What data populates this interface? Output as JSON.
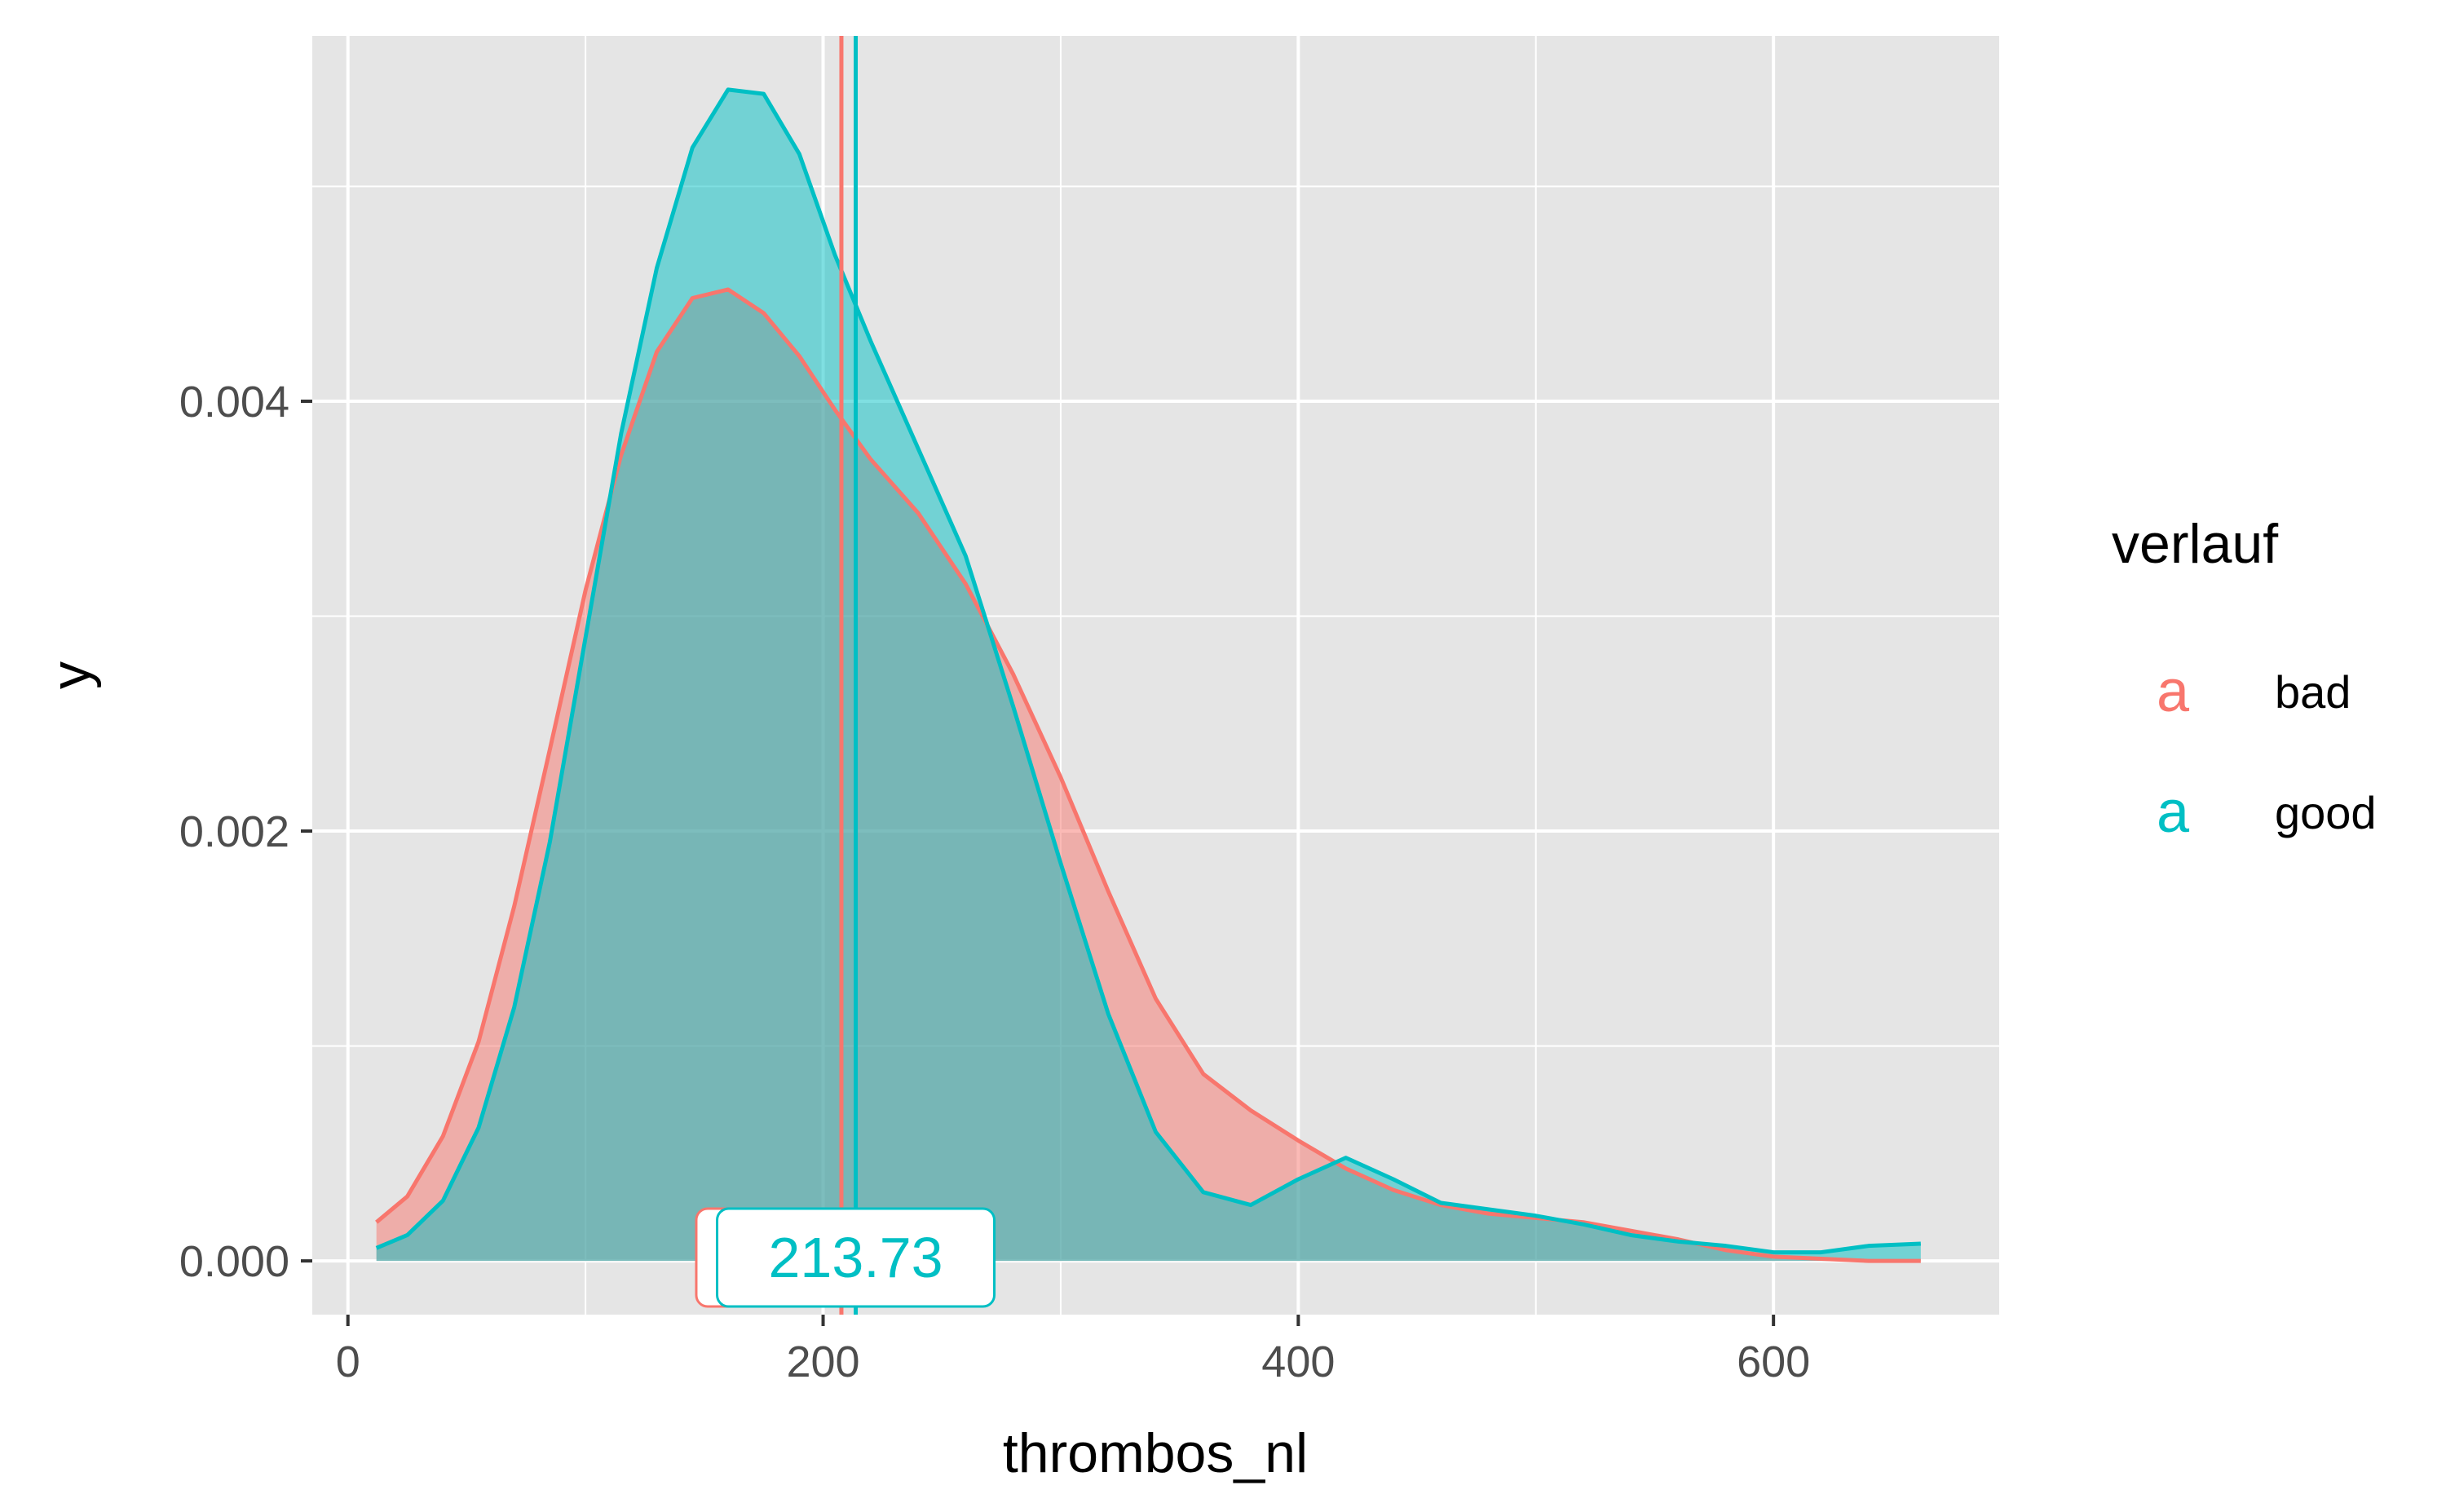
{
  "chart_data": {
    "type": "area",
    "subtype": "density",
    "xlabel": "thrombos_nl",
    "ylabel": "y",
    "xlim": [
      -15,
      695
    ],
    "ylim": [
      -0.00025,
      0.0057
    ],
    "x_ticks": [
      0,
      200,
      400,
      600
    ],
    "x_tick_labels": [
      "0",
      "200",
      "400",
      "600"
    ],
    "y_ticks": [
      0,
      0.002,
      0.004
    ],
    "y_tick_labels": [
      "0.000",
      "0.002",
      "0.004"
    ],
    "grid": true,
    "legend": {
      "title": "verlauf",
      "position": "right",
      "key_glyph": "a",
      "entries": [
        "bad",
        "good"
      ]
    },
    "series": [
      {
        "name": "bad",
        "color": "#F8766D",
        "fill": "#F8766D",
        "x": [
          12,
          25,
          40,
          55,
          70,
          85,
          100,
          115,
          130,
          145,
          160,
          175,
          190,
          205,
          220,
          240,
          260,
          280,
          300,
          320,
          340,
          360,
          380,
          400,
          420,
          440,
          460,
          480,
          500,
          520,
          540,
          560,
          580,
          600,
          620,
          640,
          662
        ],
        "y": [
          0.00018,
          0.0003,
          0.00058,
          0.00102,
          0.00165,
          0.00238,
          0.00312,
          0.00375,
          0.00423,
          0.00448,
          0.00452,
          0.00441,
          0.00421,
          0.00396,
          0.00373,
          0.00348,
          0.00315,
          0.00273,
          0.00225,
          0.00172,
          0.00122,
          0.00087,
          0.0007,
          0.00056,
          0.00043,
          0.00033,
          0.00026,
          0.00022,
          0.0002,
          0.00018,
          0.00014,
          0.0001,
          5e-05,
          2e-05,
          1e-05,
          0.0,
          0.0
        ],
        "mean": 207.7,
        "mean_label": ""
      },
      {
        "name": "good",
        "color": "#00BFC4",
        "fill": "#00BFC4",
        "x": [
          12,
          25,
          40,
          55,
          70,
          85,
          100,
          115,
          130,
          145,
          160,
          175,
          190,
          205,
          220,
          240,
          260,
          280,
          300,
          320,
          340,
          360,
          380,
          400,
          420,
          440,
          460,
          480,
          500,
          520,
          540,
          560,
          580,
          600,
          620,
          640,
          662
        ],
        "y": [
          6e-05,
          0.00012,
          0.00028,
          0.00062,
          0.00118,
          0.00195,
          0.0029,
          0.00385,
          0.00462,
          0.00518,
          0.00545,
          0.00543,
          0.00515,
          0.00468,
          0.00428,
          0.00378,
          0.00328,
          0.00258,
          0.00185,
          0.00115,
          0.0006,
          0.00032,
          0.00026,
          0.00038,
          0.00048,
          0.00038,
          0.00027,
          0.00024,
          0.00021,
          0.00017,
          0.00012,
          9e-05,
          7e-05,
          4e-05,
          4e-05,
          7e-05,
          8e-05
        ],
        "mean": 213.73,
        "mean_label": "213.73"
      }
    ]
  }
}
